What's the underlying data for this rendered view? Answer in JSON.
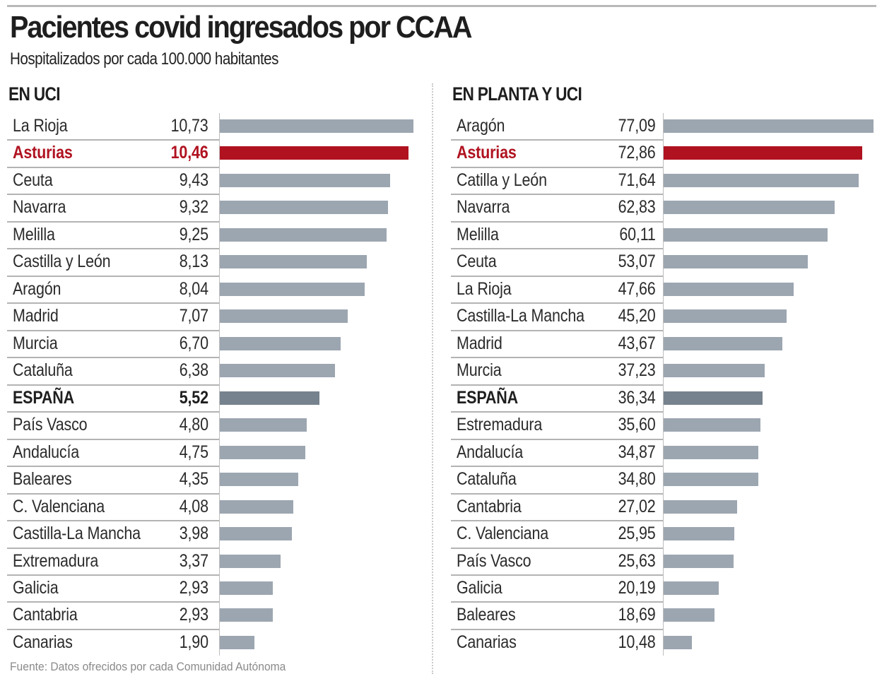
{
  "title": "Pacientes covid ingresados por CCAA",
  "subtitle": "Hospitalizados por cada 100.000 habitantes",
  "source": "Fuente: Datos ofrecidos por cada Comunidad Autónoma",
  "colors": {
    "bar_default": "#9ca6b1",
    "bar_highlight": "#b01220",
    "bar_total": "#76828e",
    "label_highlight": "#b01220"
  },
  "chart_data": [
    {
      "type": "bar",
      "orientation": "horizontal",
      "title": "EN UCI",
      "xlabel": "",
      "ylabel": "",
      "grid": false,
      "legend": "none",
      "highlight": "Asturias",
      "total_row": "ESPAÑA",
      "categories": [
        "La Rioja",
        "Asturias",
        "Ceuta",
        "Navarra",
        "Melilla",
        "Castilla y León",
        "Aragón",
        "Madrid",
        "Murcia",
        "Cataluña",
        "ESPAÑA",
        "País Vasco",
        "Andalucía",
        "Baleares",
        "C. Valenciana",
        "Castilla-La Mancha",
        "Extremadura",
        "Galicia",
        "Cantabria",
        "Canarias"
      ],
      "values": [
        10.73,
        10.46,
        9.43,
        9.32,
        9.25,
        8.13,
        8.04,
        7.07,
        6.7,
        6.38,
        5.52,
        4.8,
        4.75,
        4.35,
        4.08,
        3.98,
        3.37,
        2.93,
        2.93,
        1.9
      ],
      "value_labels": [
        "10,73",
        "10,46",
        "9,43",
        "9,32",
        "9,25",
        "8,13",
        "8,04",
        "7,07",
        "6,70",
        "6,38",
        "5,52",
        "4,80",
        "4,75",
        "4,35",
        "4,08",
        "3,98",
        "3,37",
        "2,93",
        "2,93",
        "1,90"
      ],
      "xlim": [
        0,
        10.73
      ]
    },
    {
      "type": "bar",
      "orientation": "horizontal",
      "title": "EN PLANTA Y UCI",
      "xlabel": "",
      "ylabel": "",
      "grid": false,
      "legend": "none",
      "highlight": "Asturias",
      "total_row": "ESPAÑA",
      "categories": [
        "Aragón",
        "Asturias",
        "Catilla y León",
        "Navarra",
        "Melilla",
        "Ceuta",
        "La Rioja",
        "Castilla-La Mancha",
        "Madrid",
        "Murcia",
        "ESPAÑA",
        "Estremadura",
        "Andalucía",
        "Cataluña",
        "Cantabria",
        "C. Valenciana",
        "País Vasco",
        "Galicia",
        "Baleares",
        "Canarias"
      ],
      "values": [
        77.09,
        72.86,
        71.64,
        62.83,
        60.11,
        53.07,
        47.66,
        45.2,
        43.67,
        37.23,
        36.34,
        35.6,
        34.87,
        34.8,
        27.02,
        25.95,
        25.63,
        20.19,
        18.69,
        10.48
      ],
      "value_labels": [
        "77,09",
        "72,86",
        "71,64",
        "62,83",
        "60,11",
        "53,07",
        "47,66",
        "45,20",
        "43,67",
        "37,23",
        "36,34",
        "35,60",
        "34,87",
        "34,80",
        "27,02",
        "25,95",
        "25,63",
        "20,19",
        "18,69",
        "10,48"
      ],
      "xlim": [
        0,
        77.09
      ]
    }
  ]
}
